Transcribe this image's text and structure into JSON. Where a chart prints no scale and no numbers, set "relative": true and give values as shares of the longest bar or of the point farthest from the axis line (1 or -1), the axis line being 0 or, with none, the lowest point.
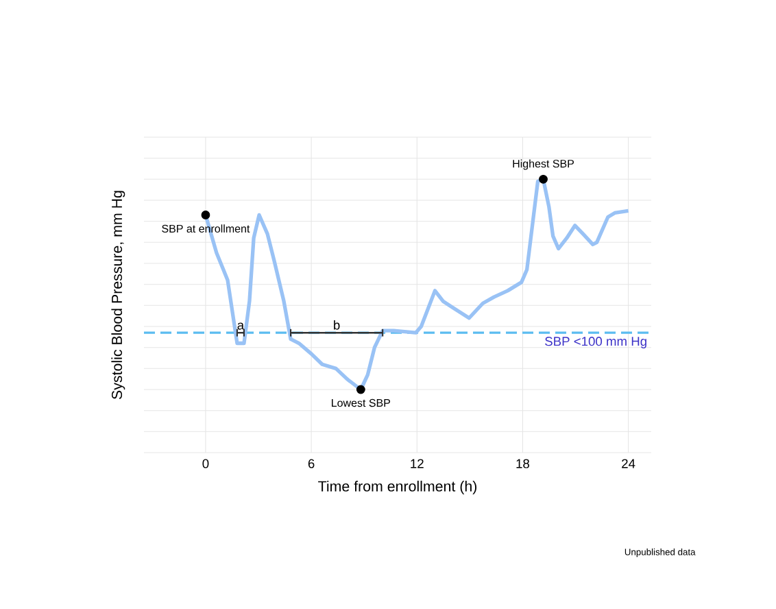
{
  "chart_data": {
    "type": "line",
    "relative": true,
    "xlabel": "Time from enrollment (h)",
    "ylabel": "Systolic Blood Pressure, mm Hg",
    "xlim": [
      -3.5,
      25.3
    ],
    "xticks": [
      0,
      6,
      12,
      18,
      24
    ],
    "grid": true,
    "line_style": "solid",
    "series": [
      {
        "color": "#99c2f5",
        "x": [
          0,
          0.62,
          1.01,
          1.25,
          1.79,
          2.18,
          2.49,
          2.73,
          3.04,
          3.51,
          3.9,
          4.44,
          4.83,
          5.3,
          6.0,
          6.62,
          7.4,
          8.03,
          8.81,
          9.2,
          9.59,
          10.05,
          10.68,
          11.93,
          12.24,
          13.02,
          13.48,
          14.03,
          14.96,
          15.74,
          16.37,
          17.15,
          17.93,
          18.24,
          18.86,
          19.17,
          19.49,
          19.72,
          20.03,
          20.5,
          20.97,
          21.43,
          21.98,
          22.21,
          22.84,
          23.23,
          24.0
        ],
        "values": [
          0.83,
          0.65,
          0.57,
          0.52,
          0.22,
          0.22,
          0.42,
          0.72,
          0.83,
          0.74,
          0.61,
          0.42,
          0.24,
          0.22,
          0.17,
          0.12,
          0.1,
          0.05,
          0,
          0.07,
          0.2,
          0.28,
          0.28,
          0.27,
          0.3,
          0.47,
          0.42,
          0.39,
          0.34,
          0.41,
          0.44,
          0.47,
          0.51,
          0.57,
          0.99,
          1,
          0.87,
          0.73,
          0.67,
          0.72,
          0.78,
          0.74,
          0.69,
          0.7,
          0.82,
          0.84,
          0.85
        ]
      },
      {
        "name": "a",
        "color": "#333333",
        "x": [
          1.79,
          2.18
        ],
        "values": [
          0.27,
          0.27
        ]
      },
      {
        "name": "b",
        "color": "#333333",
        "x": [
          4.83,
          10.05
        ],
        "values": [
          0.27,
          0.27
        ]
      },
      {
        "type": "scatter",
        "marker": "circle",
        "color": "#000000",
        "x": [
          0,
          8.81,
          19.17
        ],
        "values": [
          0.83,
          0,
          1
        ]
      }
    ],
    "ref_lines": [
      {
        "axis": "y",
        "value": 0.27,
        "label": "SBP <100 mm Hg",
        "color": "#5bbcf0",
        "line_style": "dashed"
      }
    ],
    "annotations": [
      {
        "text": "SBP at enrollment",
        "x": 0,
        "y": 0.83
      },
      {
        "text": "Lowest SBP",
        "x": 8.81,
        "y": 0
      },
      {
        "text": "Highest SBP",
        "x": 19.17,
        "y": 1
      },
      "Unpublished data"
    ]
  }
}
